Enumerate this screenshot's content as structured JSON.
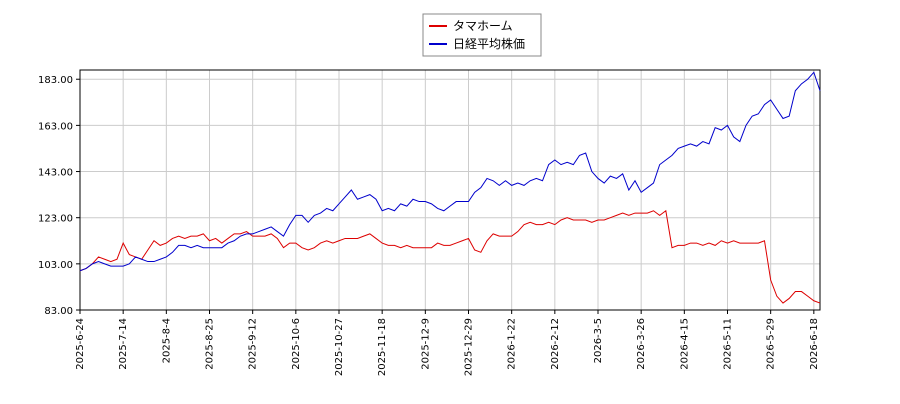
{
  "chart_data": {
    "type": "line",
    "categories": [
      "2025-6-24",
      null,
      null,
      null,
      null,
      null,
      null,
      "2025-7-14",
      null,
      null,
      null,
      null,
      null,
      null,
      "2025-8-4",
      null,
      null,
      null,
      null,
      null,
      null,
      "2025-8-25",
      null,
      null,
      null,
      null,
      null,
      null,
      "2025-9-12",
      null,
      null,
      null,
      null,
      null,
      null,
      "2025-10-6",
      null,
      null,
      null,
      null,
      null,
      null,
      "2025-10-27",
      null,
      null,
      null,
      null,
      null,
      null,
      "2025-11-18",
      null,
      null,
      null,
      null,
      null,
      null,
      "2025-12-9",
      null,
      null,
      null,
      null,
      null,
      null,
      "2025-12-29",
      null,
      null,
      null,
      null,
      null,
      null,
      "2026-1-22",
      null,
      null,
      null,
      null,
      null,
      null,
      "2026-2-12",
      null,
      null,
      null,
      null,
      null,
      null,
      "2026-3-5",
      null,
      null,
      null,
      null,
      null,
      null,
      "2026-3-26",
      null,
      null,
      null,
      null,
      null,
      null,
      "2026-4-15",
      null,
      null,
      null,
      null,
      null,
      null,
      "2026-5-11",
      null,
      null,
      null,
      null,
      null,
      null,
      "2026-5-29",
      null,
      null,
      null,
      null,
      null,
      null,
      "2026-6-18",
      null
    ],
    "series": [
      {
        "name": "タマホーム",
        "color": "#dd0000",
        "values": [
          100,
          101,
          103,
          106,
          105,
          104,
          105,
          112,
          107,
          106,
          105,
          109,
          113,
          111,
          112,
          114,
          115,
          114,
          115,
          115,
          116,
          113,
          114,
          112,
          114,
          116,
          116,
          117,
          115,
          115,
          115,
          116,
          114,
          110,
          112,
          112,
          110,
          109,
          110,
          112,
          113,
          112,
          113,
          114,
          114,
          114,
          115,
          116,
          114,
          112,
          111,
          111,
          110,
          111,
          110,
          110,
          110,
          110,
          112,
          111,
          111,
          112,
          113,
          114,
          109,
          108,
          113,
          116,
          115,
          115,
          115,
          117,
          120,
          121,
          120,
          120,
          121,
          120,
          122,
          123,
          122,
          122,
          122,
          121,
          122,
          122,
          123,
          124,
          125,
          124,
          125,
          125,
          125,
          126,
          124,
          126,
          110,
          111,
          111,
          112,
          112,
          111,
          112,
          111,
          113,
          112,
          113,
          112,
          112,
          112,
          112,
          113,
          96,
          89,
          86,
          88,
          91,
          91,
          89,
          87,
          86
        ]
      },
      {
        "name": "日経平均株価",
        "color": "#0000cc",
        "values": [
          100,
          101,
          103,
          104,
          103,
          102,
          102,
          102,
          103,
          106,
          105,
          104,
          104,
          105,
          106,
          108,
          111,
          111,
          110,
          111,
          110,
          110,
          110,
          110,
          112,
          113,
          115,
          116,
          116,
          117,
          118,
          119,
          117,
          115,
          120,
          124,
          124,
          121,
          124,
          125,
          127,
          126,
          129,
          132,
          135,
          131,
          132,
          133,
          131,
          126,
          127,
          126,
          129,
          128,
          131,
          130,
          130,
          129,
          127,
          126,
          128,
          130,
          130,
          130,
          134,
          136,
          140,
          139,
          137,
          139,
          137,
          138,
          137,
          139,
          140,
          139,
          146,
          148,
          146,
          147,
          146,
          150,
          151,
          143,
          140,
          138,
          141,
          140,
          142,
          135,
          139,
          134,
          136,
          138,
          146,
          148,
          150,
          153,
          154,
          155,
          154,
          156,
          155,
          162,
          161,
          163,
          158,
          156,
          163,
          167,
          168,
          172,
          174,
          170,
          166,
          167,
          178,
          181,
          183,
          186,
          178
        ]
      }
    ],
    "ylim": [
      83,
      187
    ],
    "yticks": [
      {
        "value": 83,
        "label": "83.00"
      },
      {
        "value": 103,
        "label": "103.00"
      },
      {
        "value": 123,
        "label": "123.00"
      },
      {
        "value": 143,
        "label": "143.00"
      },
      {
        "value": 163,
        "label": "163.00"
      },
      {
        "value": 183,
        "label": "183.00"
      }
    ],
    "grid": true,
    "legend": "top"
  }
}
